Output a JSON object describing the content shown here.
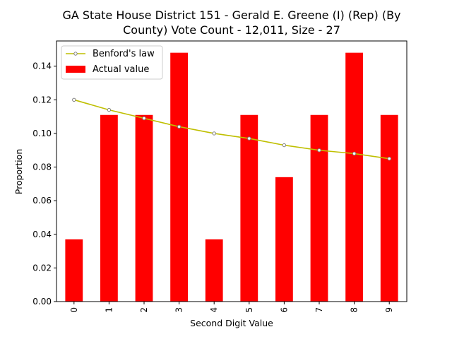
{
  "chart_data": {
    "type": "bar",
    "title_lines": [
      "GA State House District 151 - Gerald E. Greene (I) (Rep) (By",
      "County) Vote Count - 12,011, Size - 27"
    ],
    "xlabel": "Second Digit Value",
    "ylabel": "Proportion",
    "categories": [
      "0",
      "1",
      "2",
      "3",
      "4",
      "5",
      "6",
      "7",
      "8",
      "9"
    ],
    "ylim": [
      0,
      0.155
    ],
    "yticks": [
      0.0,
      0.02,
      0.04,
      0.06,
      0.08,
      0.1,
      0.12,
      0.14
    ],
    "ytick_labels": [
      "0.00",
      "0.02",
      "0.04",
      "0.06",
      "0.08",
      "0.10",
      "0.12",
      "0.14"
    ],
    "grid": false,
    "legend_position": "top-left",
    "series": [
      {
        "name": "Benford's law",
        "kind": "line",
        "color": "#bfbf00",
        "marker_edge": "#808080",
        "values": [
          0.12,
          0.114,
          0.109,
          0.104,
          0.1,
          0.097,
          0.093,
          0.09,
          0.088,
          0.085
        ]
      },
      {
        "name": "Actual value",
        "kind": "bar",
        "color": "#ff0000",
        "values": [
          0.037,
          0.111,
          0.111,
          0.148,
          0.037,
          0.111,
          0.074,
          0.111,
          0.148,
          0.111
        ]
      }
    ]
  }
}
